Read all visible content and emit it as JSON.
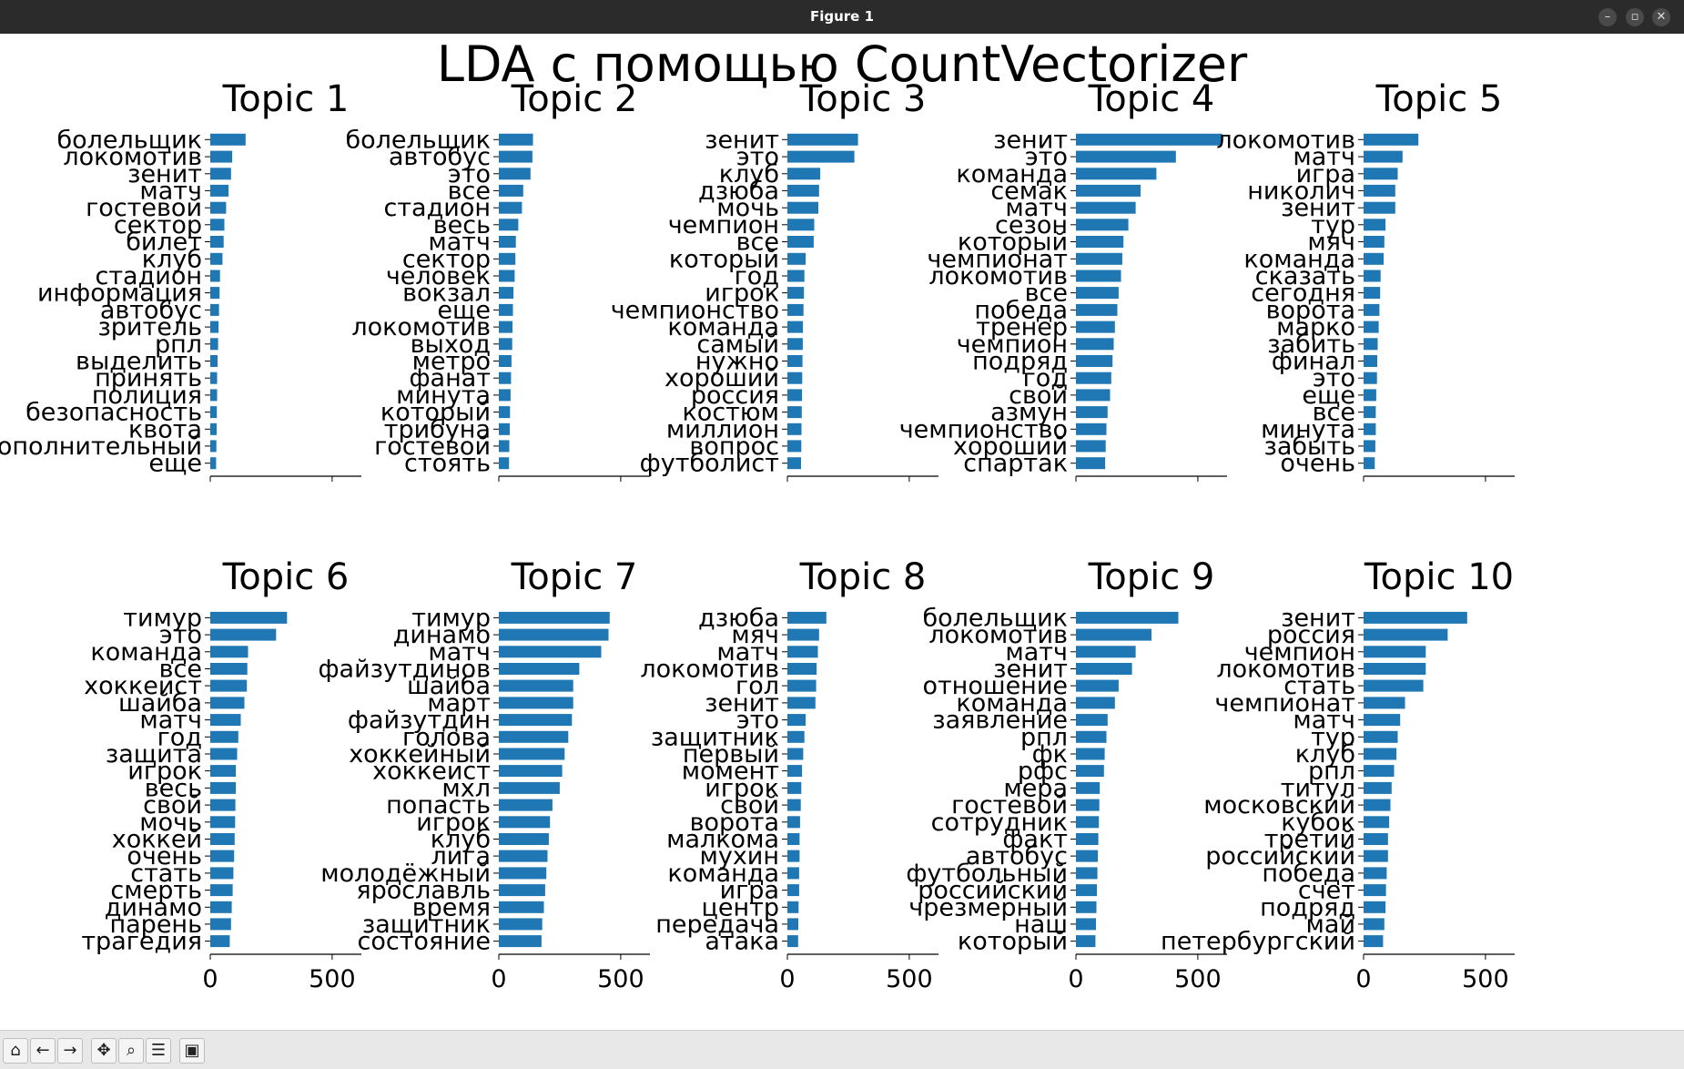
{
  "window": {
    "title": "Figure 1",
    "controls": [
      {
        "name": "minimize-button",
        "glyph": "–"
      },
      {
        "name": "maximize-button",
        "glyph": "▫"
      },
      {
        "name": "close-button",
        "glyph": "✕"
      }
    ]
  },
  "toolbar": {
    "buttons": [
      {
        "name": "home-button",
        "icon": "home-icon",
        "glyph": "⌂"
      },
      {
        "name": "back-button",
        "icon": "back-arrow-icon",
        "glyph": "←"
      },
      {
        "name": "forward-button",
        "icon": "forward-arrow-icon",
        "glyph": "→"
      },
      {
        "name": "pan-button",
        "icon": "move-icon",
        "glyph": "✥"
      },
      {
        "name": "zoom-button",
        "icon": "magnifier-icon",
        "glyph": "⌕"
      },
      {
        "name": "configure-subplots-button",
        "icon": "sliders-icon",
        "glyph": "☰"
      },
      {
        "name": "save-button",
        "icon": "floppy-disk-icon",
        "glyph": "▣"
      }
    ]
  },
  "chart_data": {
    "type": "bar",
    "orientation": "horizontal",
    "title": "LDA с помощью CountVectorizer",
    "bar_color": "#1f77b4",
    "xlim": [
      0,
      620
    ],
    "xticks": [
      0,
      500
    ],
    "shared_x": true,
    "tick_labels_bottom_row_only": true,
    "panels": [
      {
        "title": "Topic 1",
        "categories": [
          "болельщик",
          "локомотив",
          "зенит",
          "матч",
          "гостевой",
          "сектор",
          "билет",
          "клуб",
          "стадион",
          "информация",
          "автобус",
          "зритель",
          "рпл",
          "выделить",
          "принять",
          "полиция",
          "безопасность",
          "квота",
          "дополнительный",
          "еще"
        ],
        "values": [
          145,
          90,
          85,
          75,
          65,
          58,
          55,
          50,
          40,
          38,
          36,
          34,
          32,
          30,
          28,
          28,
          27,
          26,
          25,
          24
        ]
      },
      {
        "title": "Topic 2",
        "categories": [
          "болельщик",
          "автобус",
          "это",
          "все",
          "стадион",
          "весь",
          "матч",
          "сектор",
          "человек",
          "вокзал",
          "еще",
          "локомотив",
          "выход",
          "метро",
          "фанат",
          "минута",
          "который",
          "трибуна",
          "гостевой",
          "стоять"
        ],
        "values": [
          140,
          138,
          130,
          100,
          95,
          80,
          70,
          68,
          65,
          60,
          58,
          56,
          55,
          52,
          50,
          48,
          46,
          45,
          43,
          42
        ]
      },
      {
        "title": "Topic 3",
        "categories": [
          "зенит",
          "это",
          "клуб",
          "дзюба",
          "мочь",
          "чемпион",
          "все",
          "который",
          "год",
          "игрок",
          "чемпионство",
          "команда",
          "самый",
          "нужно",
          "хороший",
          "россия",
          "костюм",
          "миллион",
          "вопрос",
          "футболист"
        ],
        "values": [
          290,
          275,
          135,
          130,
          127,
          110,
          108,
          75,
          70,
          68,
          66,
          64,
          63,
          62,
          61,
          60,
          59,
          58,
          57,
          56
        ]
      },
      {
        "title": "Topic 4",
        "categories": [
          "зенит",
          "это",
          "команда",
          "семак",
          "матч",
          "сезон",
          "который",
          "чемпионат",
          "локомотив",
          "все",
          "победа",
          "тренер",
          "чемпион",
          "подряд",
          "год",
          "свой",
          "азмун",
          "чемпионство",
          "хороший",
          "спартак"
        ],
        "values": [
          600,
          410,
          330,
          265,
          245,
          215,
          195,
          190,
          185,
          175,
          170,
          160,
          155,
          150,
          145,
          140,
          130,
          125,
          122,
          120
        ]
      },
      {
        "title": "Topic 5",
        "categories": [
          "локомотив",
          "матч",
          "игра",
          "николич",
          "зенит",
          "тур",
          "мяч",
          "команда",
          "сказать",
          "сегодня",
          "ворота",
          "марко",
          "забить",
          "финал",
          "это",
          "еще",
          "все",
          "минута",
          "забыть",
          "очень"
        ],
        "values": [
          225,
          160,
          140,
          130,
          130,
          90,
          85,
          82,
          70,
          68,
          65,
          62,
          58,
          56,
          55,
          52,
          50,
          50,
          48,
          46
        ]
      },
      {
        "title": "Topic 6",
        "categories": [
          "тимур",
          "это",
          "команда",
          "все",
          "хоккеист",
          "шайба",
          "матч",
          "год",
          "защита",
          "игрок",
          "весь",
          "свой",
          "мочь",
          "хоккей",
          "очень",
          "стать",
          "смерть",
          "динамо",
          "парень",
          "трагедия"
        ],
        "values": [
          315,
          270,
          155,
          152,
          150,
          140,
          125,
          115,
          110,
          105,
          105,
          103,
          102,
          100,
          98,
          95,
          92,
          88,
          85,
          80
        ]
      },
      {
        "title": "Topic 7",
        "categories": [
          "тимур",
          "динамо",
          "матч",
          "файзутдинов",
          "шайба",
          "март",
          "файзутдин",
          "голова",
          "хоккейный",
          "хоккеист",
          "мхл",
          "попасть",
          "игрок",
          "клуб",
          "лига",
          "молодёжный",
          "ярославль",
          "время",
          "защитник",
          "состояние"
        ],
        "values": [
          455,
          450,
          420,
          330,
          305,
          305,
          300,
          285,
          270,
          260,
          250,
          220,
          210,
          205,
          200,
          195,
          190,
          185,
          178,
          175
        ]
      },
      {
        "title": "Topic 8",
        "categories": [
          "дзюба",
          "мяч",
          "матч",
          "локомотив",
          "гол",
          "зенит",
          "это",
          "защитник",
          "первый",
          "момент",
          "игрок",
          "свой",
          "ворота",
          "малкома",
          "мухин",
          "команда",
          "игра",
          "центр",
          "передача",
          "атака"
        ],
        "values": [
          160,
          130,
          125,
          120,
          118,
          115,
          75,
          70,
          65,
          60,
          57,
          55,
          52,
          50,
          50,
          48,
          48,
          46,
          45,
          44
        ]
      },
      {
        "title": "Topic 9",
        "categories": [
          "болельщик",
          "локомотив",
          "матч",
          "зенит",
          "отношение",
          "команда",
          "заявление",
          "рпл",
          "фк",
          "рфс",
          "мера",
          "гостевой",
          "сотрудник",
          "факт",
          "автобус",
          "футбольный",
          "российский",
          "чрезмерный",
          "наш",
          "который"
        ],
        "values": [
          420,
          310,
          245,
          230,
          175,
          160,
          130,
          125,
          118,
          115,
          98,
          96,
          94,
          92,
          90,
          88,
          86,
          84,
          82,
          80
        ]
      },
      {
        "title": "Topic 10",
        "categories": [
          "зенит",
          "россия",
          "чемпион",
          "локомотив",
          "стать",
          "чемпионат",
          "матч",
          "тур",
          "клуб",
          "рпл",
          "титул",
          "московский",
          "кубок",
          "третий",
          "российский",
          "победа",
          "счет",
          "подряд",
          "май",
          "петербургский"
        ],
        "values": [
          425,
          345,
          255,
          255,
          245,
          170,
          150,
          140,
          135,
          125,
          115,
          110,
          105,
          100,
          100,
          95,
          92,
          90,
          85,
          80
        ]
      }
    ]
  }
}
